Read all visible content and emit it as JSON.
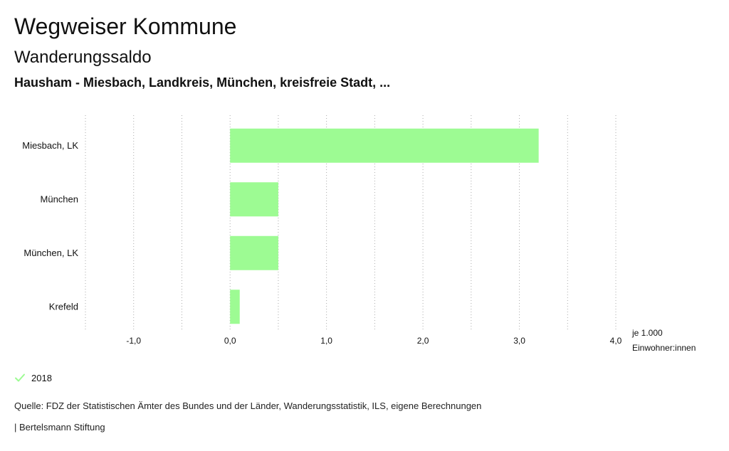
{
  "header": {
    "title": "Wegweiser Kommune",
    "subtitle": "Wanderungssaldo",
    "region": "Hausham - Miesbach, Landkreis, München, kreisfreie Stadt, ..."
  },
  "chart_data": {
    "type": "bar",
    "orientation": "horizontal",
    "categories": [
      "Miesbach, LK",
      "München",
      "München, LK",
      "Krefeld"
    ],
    "series": [
      {
        "name": "2018",
        "values": [
          3.2,
          0.5,
          0.5,
          0.1
        ],
        "color": "#9dfb93"
      }
    ],
    "xlim": [
      -1.5,
      4.0
    ],
    "xticks": [
      -1.0,
      0.0,
      1.0,
      2.0,
      3.0,
      4.0
    ],
    "xtick_labels": [
      "-1,0",
      "0,0",
      "1,0",
      "2,0",
      "3,0",
      "4,0"
    ],
    "unit_label": [
      "je 1.000",
      "Einwohner:innen"
    ],
    "grid": "vertical dotted",
    "legend_position": "bottom-left"
  },
  "legend": {
    "label": "2018",
    "icon": "check-icon"
  },
  "footer": {
    "source": "Quelle: FDZ der Statistischen Ämter des Bundes und der Länder, Wanderungsstatistik, ILS, eigene Berechnungen",
    "brand": "| Bertelsmann Stiftung"
  },
  "colors": {
    "bar": "#9dfb93",
    "grid": "#aaaaaa",
    "text": "#111111"
  }
}
